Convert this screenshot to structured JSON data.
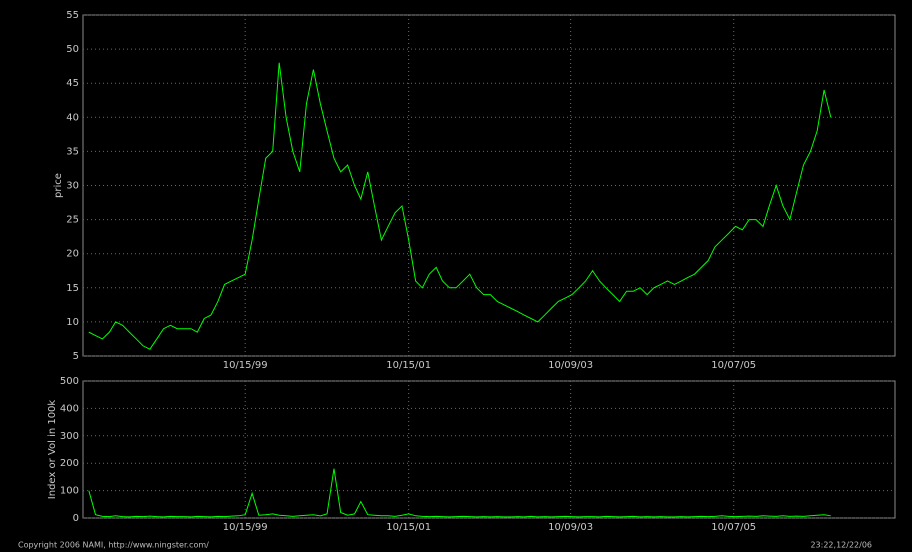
{
  "chart_data": [
    {
      "type": "line",
      "y_label": "price",
      "x": [
        "11/15/97",
        "12/15/97",
        "01/15/98",
        "02/15/98",
        "03/15/98",
        "04/15/98",
        "05/15/98",
        "06/15/98",
        "07/15/98",
        "08/15/98",
        "09/15/98",
        "10/15/98",
        "11/15/98",
        "12/15/98",
        "01/15/99",
        "02/15/99",
        "03/15/99",
        "04/15/99",
        "05/15/99",
        "06/15/99",
        "07/15/99",
        "08/15/99",
        "09/15/99",
        "10/15/99",
        "11/15/99",
        "12/15/99",
        "01/15/00",
        "02/15/00",
        "03/15/00",
        "04/15/00",
        "05/15/00",
        "06/15/00",
        "07/15/00",
        "08/15/00",
        "09/15/00",
        "10/15/00",
        "11/15/00",
        "12/15/00",
        "01/15/01",
        "02/15/01",
        "03/15/01",
        "04/15/01",
        "05/15/01",
        "06/15/01",
        "07/15/01",
        "08/15/01",
        "09/15/01",
        "10/15/01",
        "11/15/01",
        "12/15/01",
        "01/15/02",
        "02/15/02",
        "03/15/02",
        "04/15/02",
        "05/15/02",
        "06/15/02",
        "07/15/02",
        "08/15/02",
        "09/15/02",
        "10/15/02",
        "11/15/02",
        "12/15/02",
        "01/15/03",
        "02/15/03",
        "03/15/03",
        "04/15/03",
        "05/15/03",
        "06/15/03",
        "07/15/03",
        "08/15/03",
        "09/15/03",
        "10/15/03",
        "11/15/03",
        "12/15/03",
        "01/15/04",
        "02/15/04",
        "03/15/04",
        "04/15/04",
        "05/15/04",
        "06/15/04",
        "07/15/04",
        "08/15/04",
        "09/15/04",
        "10/15/04",
        "11/15/04",
        "12/15/04",
        "01/15/05",
        "02/15/05",
        "03/15/05",
        "04/15/05",
        "05/15/05",
        "06/15/05",
        "07/15/05",
        "08/15/05",
        "09/15/05",
        "10/15/05",
        "11/15/05",
        "12/15/05",
        "01/15/06",
        "02/15/06",
        "03/15/06",
        "04/15/06",
        "05/15/06",
        "06/15/06",
        "07/15/06",
        "08/15/06",
        "09/15/06",
        "10/15/06",
        "11/15/06",
        "12/15/06"
      ],
      "series": [
        {
          "color": "#00ff00",
          "values": [
            8.5,
            8,
            7.5,
            8.5,
            10,
            9.5,
            8.5,
            7.5,
            6.5,
            6,
            7.5,
            9,
            9.5,
            9,
            9,
            9,
            8.5,
            10.5,
            11,
            13,
            15.5,
            16,
            16.5,
            17,
            22,
            28,
            34,
            35,
            48,
            40,
            35,
            32,
            42,
            47,
            42,
            38,
            34,
            32,
            33,
            30,
            28,
            32,
            27,
            22,
            24,
            26,
            27,
            22,
            16,
            15,
            17,
            18,
            16,
            15,
            15,
            16,
            17,
            15,
            14,
            14,
            13,
            12.5,
            12,
            11.5,
            11,
            10.5,
            10,
            11,
            12,
            13,
            13.5,
            14,
            15,
            16,
            17.5,
            16,
            15,
            14,
            13,
            14.5,
            14.5,
            15,
            14,
            15,
            15.5,
            16,
            15.5,
            16,
            16.5,
            17,
            18,
            19,
            21,
            22,
            23,
            24,
            23.5,
            25,
            25,
            24,
            27,
            30,
            27,
            25,
            29,
            33,
            35,
            38,
            44,
            40
          ]
        }
      ],
      "xlim": [
        "10/20/97",
        "09/28/07"
      ],
      "xticks": [
        "10/15/99",
        "10/15/01",
        "10/09/03",
        "10/07/05"
      ],
      "ylim": [
        5,
        55
      ],
      "yticks": [
        5,
        10,
        15,
        20,
        25,
        30,
        35,
        40,
        45,
        50,
        55
      ],
      "grid": true
    },
    {
      "type": "line",
      "y_label": "Index or Vol in 100k",
      "x": [
        "11/15/97",
        "12/15/97",
        "01/15/98",
        "02/15/98",
        "03/15/98",
        "04/15/98",
        "05/15/98",
        "06/15/98",
        "07/15/98",
        "08/15/98",
        "09/15/98",
        "10/15/98",
        "11/15/98",
        "12/15/98",
        "01/15/99",
        "02/15/99",
        "03/15/99",
        "04/15/99",
        "05/15/99",
        "06/15/99",
        "07/15/99",
        "08/15/99",
        "09/15/99",
        "10/15/99",
        "11/15/99",
        "12/15/99",
        "01/15/00",
        "02/15/00",
        "03/15/00",
        "04/15/00",
        "05/15/00",
        "06/15/00",
        "07/15/00",
        "08/15/00",
        "09/15/00",
        "10/15/00",
        "11/15/00",
        "12/15/00",
        "01/15/01",
        "02/15/01",
        "03/15/01",
        "04/15/01",
        "05/15/01",
        "06/15/01",
        "07/15/01",
        "08/15/01",
        "09/15/01",
        "10/15/01",
        "11/15/01",
        "12/15/01",
        "01/15/02",
        "02/15/02",
        "03/15/02",
        "04/15/02",
        "05/15/02",
        "06/15/02",
        "07/15/02",
        "08/15/02",
        "09/15/02",
        "10/15/02",
        "11/15/02",
        "12/15/02",
        "01/15/03",
        "02/15/03",
        "03/15/03",
        "04/15/03",
        "05/15/03",
        "06/15/03",
        "07/15/03",
        "08/15/03",
        "09/15/03",
        "10/15/03",
        "11/15/03",
        "12/15/03",
        "01/15/04",
        "02/15/04",
        "03/15/04",
        "04/15/04",
        "05/15/04",
        "06/15/04",
        "07/15/04",
        "08/15/04",
        "09/15/04",
        "10/15/04",
        "11/15/04",
        "12/15/04",
        "01/15/05",
        "02/15/05",
        "03/15/05",
        "04/15/05",
        "05/15/05",
        "06/15/05",
        "07/15/05",
        "08/15/05",
        "09/15/05",
        "10/15/05",
        "11/15/05",
        "12/15/05",
        "01/15/06",
        "02/15/06",
        "03/15/06",
        "04/15/06",
        "05/15/06",
        "06/15/06",
        "07/15/06",
        "08/15/06",
        "09/15/06",
        "10/15/06",
        "11/15/06",
        "12/15/06"
      ],
      "series": [
        {
          "color": "#00ff00",
          "values": [
            100,
            12,
            6,
            5,
            8,
            5,
            4,
            6,
            5,
            7,
            5,
            4,
            6,
            5,
            5,
            4,
            6,
            5,
            4,
            6,
            5,
            7,
            8,
            12,
            90,
            10,
            12,
            15,
            10,
            8,
            6,
            8,
            10,
            12,
            8,
            15,
            180,
            20,
            10,
            15,
            60,
            12,
            10,
            8,
            8,
            6,
            10,
            15,
            8,
            6,
            5,
            6,
            5,
            4,
            5,
            6,
            5,
            4,
            5,
            4,
            5,
            4,
            4,
            5,
            4,
            6,
            4,
            5,
            4,
            5,
            6,
            5,
            4,
            5,
            5,
            4,
            6,
            5,
            4,
            5,
            6,
            4,
            5,
            4,
            5,
            4,
            4,
            5,
            4,
            5,
            6,
            5,
            6,
            8,
            6,
            5,
            6,
            7,
            6,
            8,
            7,
            6,
            8,
            6,
            7,
            6,
            8,
            10,
            12,
            8
          ]
        }
      ],
      "xlim": [
        "10/20/97",
        "09/28/07"
      ],
      "xticks": [
        "10/15/99",
        "10/15/01",
        "10/09/03",
        "10/07/05"
      ],
      "ylim": [
        0,
        500
      ],
      "yticks": [
        0,
        100,
        200,
        300,
        400,
        500
      ],
      "grid": true
    }
  ],
  "footer": {
    "copyright": "Copyright 2006 NAMI, http://www.ningster.com/",
    "timestamp": "23:22,12/22/06"
  }
}
